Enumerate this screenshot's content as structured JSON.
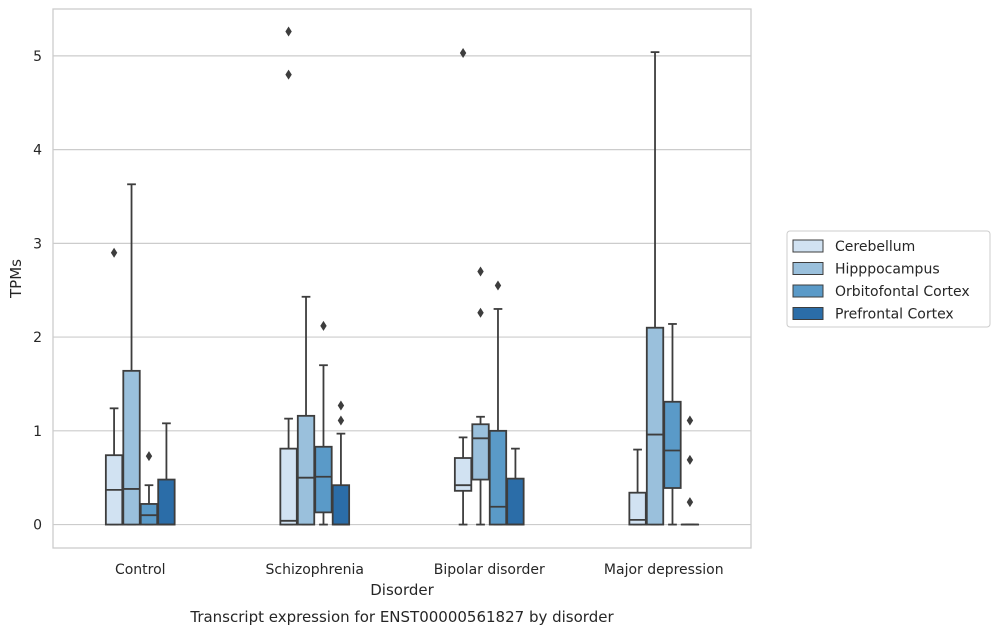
{
  "chart_data": {
    "type": "boxplot",
    "caption": "Transcript expression for ENST00000561827 by disorder",
    "xlabel": "Disorder",
    "ylabel": "TPMs",
    "ylim": [
      -0.25,
      5.5
    ],
    "yticks": [
      0,
      1,
      2,
      3,
      4,
      5
    ],
    "grid": "horizontal",
    "legend_position": "right-center",
    "categories": [
      "Control",
      "Schizophrenia",
      "Bipolar disorder",
      "Major depression"
    ],
    "series": [
      {
        "name": "Cerebellum",
        "color": "#d1e2f2",
        "boxes": [
          {
            "q1": 0.0,
            "median": 0.37,
            "q3": 0.74,
            "whisker_low": 0.0,
            "whisker_high": 1.24,
            "outliers": [
              2.9
            ]
          },
          {
            "q1": 0.0,
            "median": 0.04,
            "q3": 0.81,
            "whisker_low": 0.0,
            "whisker_high": 1.13,
            "outliers": [
              5.26,
              4.8
            ]
          },
          {
            "q1": 0.36,
            "median": 0.42,
            "q3": 0.71,
            "whisker_low": 0.0,
            "whisker_high": 0.93,
            "outliers": [
              5.03
            ]
          },
          {
            "q1": 0.0,
            "median": 0.05,
            "q3": 0.34,
            "whisker_low": 0.0,
            "whisker_high": 0.8,
            "outliers": []
          }
        ]
      },
      {
        "name": "Hipppocampus",
        "color": "#9ac0dc",
        "boxes": [
          {
            "q1": 0.0,
            "median": 0.38,
            "q3": 1.64,
            "whisker_low": 0.0,
            "whisker_high": 3.63,
            "outliers": []
          },
          {
            "q1": 0.0,
            "median": 0.5,
            "q3": 1.16,
            "whisker_low": 0.0,
            "whisker_high": 2.43,
            "outliers": []
          },
          {
            "q1": 0.48,
            "median": 0.92,
            "q3": 1.07,
            "whisker_low": 0.0,
            "whisker_high": 1.15,
            "outliers": [
              2.7,
              2.26
            ]
          },
          {
            "q1": 0.0,
            "median": 0.96,
            "q3": 2.1,
            "whisker_low": 0.0,
            "whisker_high": 5.04,
            "outliers": []
          }
        ]
      },
      {
        "name": "Orbitofontal Cortex",
        "color": "#5a9ac8",
        "boxes": [
          {
            "q1": 0.0,
            "median": 0.1,
            "q3": 0.22,
            "whisker_low": 0.0,
            "whisker_high": 0.42,
            "outliers": [
              0.73
            ]
          },
          {
            "q1": 0.13,
            "median": 0.51,
            "q3": 0.83,
            "whisker_low": 0.0,
            "whisker_high": 1.7,
            "outliers": [
              2.12
            ]
          },
          {
            "q1": 0.0,
            "median": 0.19,
            "q3": 1.0,
            "whisker_low": 0.0,
            "whisker_high": 2.3,
            "outliers": [
              2.55
            ]
          },
          {
            "q1": 0.39,
            "median": 0.79,
            "q3": 1.31,
            "whisker_low": 0.0,
            "whisker_high": 2.14,
            "outliers": []
          }
        ]
      },
      {
        "name": "Prefrontal Cortex",
        "color": "#2b6da8",
        "boxes": [
          {
            "q1": 0.0,
            "median": 0.0,
            "q3": 0.48,
            "whisker_low": 0.0,
            "whisker_high": 1.08,
            "outliers": []
          },
          {
            "q1": 0.0,
            "median": 0.0,
            "q3": 0.42,
            "whisker_low": 0.0,
            "whisker_high": 0.97,
            "outliers": [
              1.27,
              1.11
            ]
          },
          {
            "q1": 0.0,
            "median": 0.0,
            "q3": 0.49,
            "whisker_low": 0.0,
            "whisker_high": 0.81,
            "outliers": []
          },
          {
            "q1": 0.0,
            "median": 0.0,
            "q3": 0.0,
            "whisker_low": 0.0,
            "whisker_high": 0.0,
            "outliers": [
              1.11,
              0.69,
              0.24
            ]
          }
        ]
      }
    ]
  }
}
